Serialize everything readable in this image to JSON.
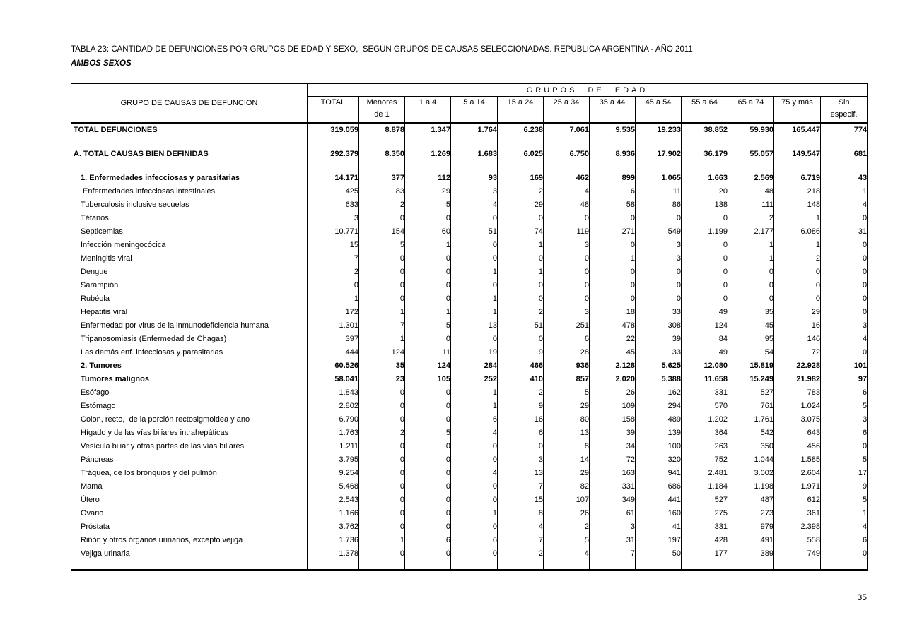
{
  "title": "TABLA 23: CANTIDAD DE DEFUNCIONES POR GRUPOS DE EDAD Y SEXO,  SEGUN GRUPOS DE CAUSAS SELECCIONADAS. REPUBLICA ARGENTINA - AÑO 2011",
  "subtitle": "AMBOS SEXOS",
  "page_number": "35",
  "table": {
    "row_header": "GRUPO DE CAUSAS DE DEFUNCION",
    "group_header": "GRUPOS DE EDAD",
    "columns": [
      {
        "l1": "TOTAL",
        "l2": ""
      },
      {
        "l1": "Menores",
        "l2": "de 1"
      },
      {
        "l1": "1 a 4",
        "l2": ""
      },
      {
        "l1": "5 a 14",
        "l2": ""
      },
      {
        "l1": "15 a 24",
        "l2": ""
      },
      {
        "l1": "25 a 34",
        "l2": ""
      },
      {
        "l1": "35 a 44",
        "l2": ""
      },
      {
        "l1": "45 a 54",
        "l2": ""
      },
      {
        "l1": "55 a 64",
        "l2": ""
      },
      {
        "l1": "65 a 74",
        "l2": ""
      },
      {
        "l1": "75 y más",
        "l2": ""
      },
      {
        "l1": "Sin",
        "l2": "especif."
      }
    ],
    "rows": [
      {
        "label": "TOTAL DEFUNCIONES",
        "style": "total1",
        "values": [
          "319.059",
          "8.878",
          "1.347",
          "1.764",
          "6.238",
          "7.061",
          "9.535",
          "19.233",
          "38.852",
          "59.930",
          "165.447",
          "774"
        ]
      },
      {
        "label": "A. TOTAL CAUSAS BIEN DEFINIDAS",
        "style": "total2",
        "values": [
          "292.379",
          "8.350",
          "1.269",
          "1.683",
          "6.025",
          "6.750",
          "8.936",
          "17.902",
          "36.179",
          "55.057",
          "149.547",
          "681"
        ]
      },
      {
        "label": "1. Enfermedades infecciosas y parasitarias",
        "style": "section",
        "values": [
          "14.171",
          "377",
          "112",
          "93",
          "169",
          "462",
          "899",
          "1.065",
          "1.663",
          "2.569",
          "6.719",
          "43"
        ]
      },
      {
        "label": " Enfermedades infecciosas intestinales",
        "style": "item",
        "values": [
          "425",
          "83",
          "29",
          "3",
          "2",
          "4",
          "6",
          "11",
          "20",
          "48",
          "218",
          "1"
        ]
      },
      {
        "label": "Tuberculosis inclusive secuelas",
        "style": "item",
        "values": [
          "633",
          "2",
          "5",
          "4",
          "29",
          "48",
          "58",
          "86",
          "138",
          "111",
          "148",
          "4"
        ]
      },
      {
        "label": "Tétanos",
        "style": "item",
        "values": [
          "3",
          "0",
          "0",
          "0",
          "0",
          "0",
          "0",
          "0",
          "0",
          "2",
          "1",
          "0"
        ]
      },
      {
        "label": "Septicemias",
        "style": "item",
        "values": [
          "10.771",
          "154",
          "60",
          "51",
          "74",
          "119",
          "271",
          "549",
          "1.199",
          "2.177",
          "6.086",
          "31"
        ]
      },
      {
        "label": "Infección meningocócica",
        "style": "item",
        "values": [
          "15",
          "5",
          "1",
          "0",
          "1",
          "3",
          "0",
          "3",
          "0",
          "1",
          "1",
          "0"
        ]
      },
      {
        "label": "Meningitis viral",
        "style": "item",
        "values": [
          "7",
          "0",
          "0",
          "0",
          "0",
          "0",
          "1",
          "3",
          "0",
          "1",
          "2",
          "0"
        ]
      },
      {
        "label": "Dengue",
        "style": "item",
        "values": [
          "2",
          "0",
          "0",
          "1",
          "1",
          "0",
          "0",
          "0",
          "0",
          "0",
          "0",
          "0"
        ]
      },
      {
        "label": "Sarampión",
        "style": "item",
        "values": [
          "0",
          "0",
          "0",
          "0",
          "0",
          "0",
          "0",
          "0",
          "0",
          "0",
          "0",
          "0"
        ]
      },
      {
        "label": "Rubéola",
        "style": "item",
        "values": [
          "1",
          "0",
          "0",
          "1",
          "0",
          "0",
          "0",
          "0",
          "0",
          "0",
          "0",
          "0"
        ]
      },
      {
        "label": "Hepatitis viral",
        "style": "item",
        "values": [
          "172",
          "1",
          "1",
          "1",
          "2",
          "3",
          "18",
          "33",
          "49",
          "35",
          "29",
          "0"
        ]
      },
      {
        "label": "Enfermedad por virus de la inmunodeficiencia humana",
        "style": "item",
        "values": [
          "1.301",
          "7",
          "5",
          "13",
          "51",
          "251",
          "478",
          "308",
          "124",
          "45",
          "16",
          "3"
        ]
      },
      {
        "label": "Tripanosomiasis (Enfermedad de Chagas)",
        "style": "item",
        "values": [
          "397",
          "1",
          "0",
          "0",
          "0",
          "6",
          "22",
          "39",
          "84",
          "95",
          "146",
          "4"
        ]
      },
      {
        "label": "Las demás enf. infecciosas y parasitarias",
        "style": "item",
        "values": [
          "444",
          "124",
          "11",
          "19",
          "9",
          "28",
          "45",
          "33",
          "49",
          "54",
          "72",
          "0"
        ]
      },
      {
        "label": "2. Tumores",
        "style": "section",
        "values": [
          "60.526",
          "35",
          "124",
          "284",
          "466",
          "936",
          "2.128",
          "5.625",
          "12.080",
          "15.819",
          "22.928",
          "101"
        ]
      },
      {
        "label": "Tumores malignos",
        "style": "section",
        "values": [
          "58.041",
          "23",
          "105",
          "252",
          "410",
          "857",
          "2.020",
          "5.388",
          "11.658",
          "15.249",
          "21.982",
          "97"
        ]
      },
      {
        "label": "Esófago",
        "style": "item",
        "values": [
          "1.843",
          "0",
          "0",
          "1",
          "2",
          "5",
          "26",
          "162",
          "331",
          "527",
          "783",
          "6"
        ]
      },
      {
        "label": "Estómago",
        "style": "item",
        "values": [
          "2.802",
          "0",
          "0",
          "1",
          "9",
          "29",
          "109",
          "294",
          "570",
          "761",
          "1.024",
          "5"
        ]
      },
      {
        "label": "Colon, recto,  de la porción rectosigmoidea y ano",
        "style": "item",
        "values": [
          "6.790",
          "0",
          "0",
          "6",
          "16",
          "80",
          "158",
          "489",
          "1.202",
          "1.761",
          "3.075",
          "3"
        ]
      },
      {
        "label": "Hígado y de las vías biliares intrahepáticas",
        "style": "item",
        "values": [
          "1.763",
          "2",
          "5",
          "4",
          "6",
          "13",
          "39",
          "139",
          "364",
          "542",
          "643",
          "6"
        ]
      },
      {
        "label": "Vesícula biliar y otras partes de las vías biliares",
        "style": "item",
        "values": [
          "1.211",
          "0",
          "0",
          "0",
          "0",
          "8",
          "34",
          "100",
          "263",
          "350",
          "456",
          "0"
        ]
      },
      {
        "label": "Páncreas",
        "style": "item",
        "values": [
          "3.795",
          "0",
          "0",
          "0",
          "3",
          "14",
          "72",
          "320",
          "752",
          "1.044",
          "1.585",
          "5"
        ]
      },
      {
        "label": "Tráquea, de los bronquios y del pulmón",
        "style": "item",
        "values": [
          "9.254",
          "0",
          "0",
          "4",
          "13",
          "29",
          "163",
          "941",
          "2.481",
          "3.002",
          "2.604",
          "17"
        ]
      },
      {
        "label": "Mama",
        "style": "item",
        "values": [
          "5.468",
          "0",
          "0",
          "0",
          "7",
          "82",
          "331",
          "686",
          "1.184",
          "1.198",
          "1.971",
          "9"
        ]
      },
      {
        "label": "Útero",
        "style": "item",
        "values": [
          "2.543",
          "0",
          "0",
          "0",
          "15",
          "107",
          "349",
          "441",
          "527",
          "487",
          "612",
          "5"
        ]
      },
      {
        "label": "Ovario",
        "style": "item",
        "values": [
          "1.166",
          "0",
          "0",
          "1",
          "8",
          "26",
          "61",
          "160",
          "275",
          "273",
          "361",
          "1"
        ]
      },
      {
        "label": "Próstata",
        "style": "item",
        "values": [
          "3.762",
          "0",
          "0",
          "0",
          "4",
          "2",
          "3",
          "41",
          "331",
          "979",
          "2.398",
          "4"
        ]
      },
      {
        "label": "Riñón y otros órganos urinarios, excepto vejiga",
        "style": "item",
        "values": [
          "1.736",
          "1",
          "6",
          "6",
          "7",
          "5",
          "31",
          "197",
          "428",
          "491",
          "558",
          "6"
        ]
      },
      {
        "label": "Vejiga urinaria",
        "style": "item",
        "values": [
          "1.378",
          "0",
          "0",
          "0",
          "2",
          "4",
          "7",
          "50",
          "177",
          "389",
          "749",
          "0"
        ]
      }
    ]
  }
}
